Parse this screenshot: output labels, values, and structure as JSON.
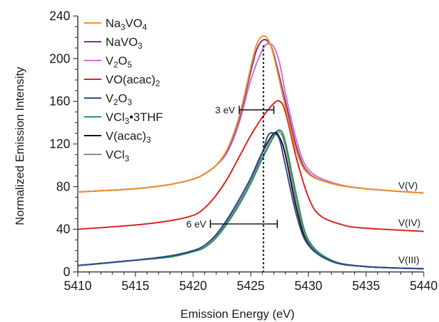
{
  "chart_data": {
    "type": "line",
    "xlabel": "Emission Energy (eV)",
    "ylabel": "Normalized Emission Intensity",
    "xlim": [
      5410,
      5440
    ],
    "ylim": [
      0,
      240
    ],
    "x_ticks": [
      5410,
      5415,
      5420,
      5425,
      5430,
      5435,
      5440
    ],
    "y_ticks": [
      0,
      40,
      80,
      120,
      160,
      200,
      240
    ],
    "grid": false,
    "legend_position": "top-left",
    "series": [
      {
        "name": "Na3VO4",
        "label_parts": [
          [
            "Na",
            ""
          ],
          [
            "3",
            "sub"
          ],
          [
            "VO",
            ""
          ],
          [
            "4",
            "sub"
          ]
        ],
        "color": "#f0932b",
        "x": [
          5410,
          5415,
          5418,
          5420,
          5421,
          5422,
          5423,
          5424,
          5425,
          5425.5,
          5426,
          5426.5,
          5427,
          5428,
          5429,
          5430,
          5432,
          5435,
          5440
        ],
        "y": [
          75,
          78,
          82,
          87,
          92,
          100,
          116,
          146,
          192,
          213,
          221,
          218,
          202,
          155,
          112,
          92,
          83,
          78,
          74
        ]
      },
      {
        "name": "NaVO3",
        "label_parts": [
          [
            "NaVO",
            ""
          ],
          [
            "3",
            "sub"
          ]
        ],
        "color": "#7b2d8e",
        "x": [
          5410,
          5415,
          5418,
          5420,
          5421,
          5422,
          5423,
          5424,
          5425,
          5425.5,
          5426,
          5426.5,
          5427,
          5428,
          5429,
          5430,
          5432,
          5435,
          5440
        ],
        "y": [
          75,
          78,
          82,
          87,
          92,
          100,
          115,
          144,
          188,
          208,
          217,
          216,
          204,
          160,
          116,
          93,
          83,
          78,
          74
        ]
      },
      {
        "name": "V2O5",
        "label_parts": [
          [
            "V",
            ""
          ],
          [
            "2",
            "sub"
          ],
          [
            "O",
            ""
          ],
          [
            "5",
            "sub"
          ]
        ],
        "color": "#cc6ecf",
        "x": [
          5410,
          5415,
          5418,
          5420,
          5421,
          5422,
          5423,
          5424,
          5425,
          5426,
          5426.5,
          5427,
          5427.5,
          5428,
          5429,
          5430,
          5432,
          5435,
          5440
        ],
        "y": [
          75,
          78,
          82,
          87,
          92,
          100,
          113,
          140,
          180,
          208,
          214,
          211,
          196,
          168,
          122,
          96,
          84,
          78,
          74
        ]
      },
      {
        "name": "VO(acac)2",
        "label_parts": [
          [
            "VO(acac)",
            ""
          ],
          [
            "2",
            "sub"
          ]
        ],
        "color": "#e02020",
        "x": [
          5410,
          5415,
          5418,
          5420,
          5421,
          5422,
          5423,
          5424,
          5425,
          5426,
          5427,
          5427.5,
          5428,
          5429,
          5430,
          5431,
          5433,
          5435,
          5440
        ],
        "y": [
          40,
          44,
          48,
          53,
          60,
          72,
          88,
          108,
          128,
          145,
          158,
          160,
          150,
          105,
          70,
          53,
          44,
          41,
          38
        ]
      },
      {
        "name": "V2O3",
        "label_parts": [
          [
            "V",
            ""
          ],
          [
            "2",
            "sub"
          ],
          [
            "O",
            ""
          ],
          [
            "3",
            "sub"
          ]
        ],
        "color": "#2e4a94",
        "x": [
          5410,
          5415,
          5418,
          5420,
          5421,
          5422,
          5423,
          5424,
          5425,
          5426,
          5426.5,
          5427,
          5427.5,
          5428,
          5429,
          5430,
          5432,
          5435,
          5440
        ],
        "y": [
          6,
          11,
          15,
          20,
          25,
          35,
          50,
          68,
          88,
          112,
          128,
          130,
          124,
          100,
          52,
          25,
          10,
          5,
          3
        ]
      },
      {
        "name": "VCl3•3THF",
        "label_parts": [
          [
            "VCl",
            ""
          ],
          [
            "3",
            "sub"
          ],
          [
            "•3THF",
            ""
          ]
        ],
        "color": "#27955a",
        "x": [
          5410,
          5415,
          5418,
          5420,
          5421,
          5422,
          5423,
          5424,
          5425,
          5426,
          5427,
          5427.5,
          5428,
          5429,
          5430,
          5432,
          5435,
          5440
        ],
        "y": [
          6,
          11,
          14,
          19,
          23,
          32,
          46,
          63,
          83,
          106,
          127,
          133,
          122,
          70,
          30,
          11,
          5,
          3
        ]
      },
      {
        "name": "V(acac)3",
        "label_parts": [
          [
            "V(acac)",
            ""
          ],
          [
            "3",
            "sub"
          ]
        ],
        "color": "#141414",
        "x": [
          5410,
          5415,
          5418,
          5420,
          5421,
          5422,
          5423,
          5424,
          5425,
          5426,
          5427,
          5427.5,
          5428,
          5429,
          5430,
          5432,
          5435,
          5440
        ],
        "y": [
          6,
          11,
          15,
          20,
          25,
          35,
          50,
          68,
          88,
          112,
          130,
          126,
          110,
          58,
          26,
          10,
          5,
          3
        ]
      },
      {
        "name": "VCl3",
        "label_parts": [
          [
            "VCl",
            ""
          ],
          [
            "3",
            "sub"
          ]
        ],
        "color": "#8c8c8c",
        "x": [
          5410,
          5415,
          5418,
          5420,
          5421,
          5422,
          5423,
          5424,
          5425,
          5426,
          5427,
          5427.5,
          5428,
          5429,
          5430,
          5432,
          5435,
          5440
        ],
        "y": [
          6,
          11,
          14,
          19,
          23,
          33,
          48,
          65,
          85,
          108,
          128,
          131,
          118,
          64,
          28,
          10,
          5,
          3
        ]
      }
    ],
    "annotations": [
      {
        "kind": "text",
        "text": "V(V)",
        "x": 5437.8,
        "y": 78
      },
      {
        "kind": "text",
        "text": "V(IV)",
        "x": 5437.8,
        "y": 43
      },
      {
        "kind": "text",
        "text": "V(III)",
        "x": 5437.8,
        "y": 8
      },
      {
        "kind": "range",
        "text": "3 eV",
        "x1": 5424.0,
        "x2": 5427.0,
        "y": 152
      },
      {
        "kind": "range",
        "text": "6 eV",
        "x1": 5421.5,
        "x2": 5427.3,
        "y": 45
      },
      {
        "kind": "vline",
        "x": 5426.1,
        "style": "dotted"
      }
    ]
  }
}
